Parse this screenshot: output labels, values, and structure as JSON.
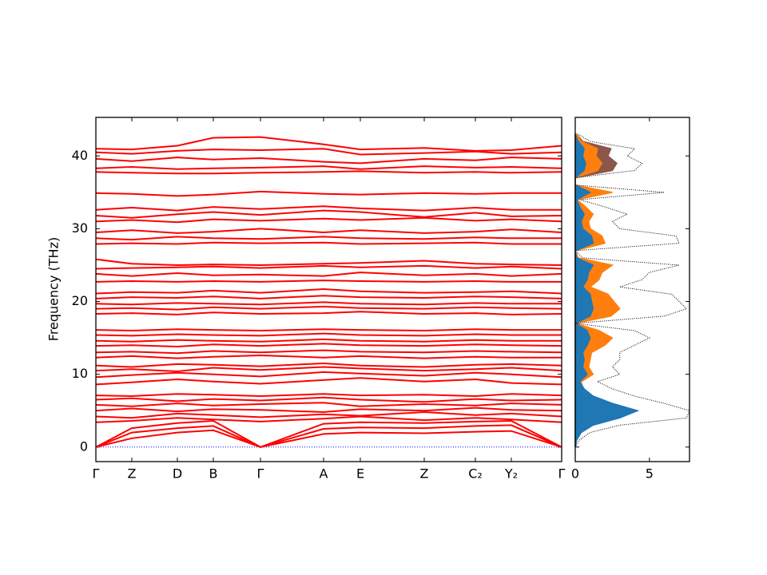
{
  "chart_data": [
    {
      "type": "line",
      "ylabel": "Frequency (THz)",
      "color": "#ff0000",
      "x": [
        0,
        0.45,
        1.02,
        1.47,
        2.06,
        2.85,
        3.31,
        4.11,
        4.75,
        5.2,
        5.83
      ],
      "xlim": [
        0,
        5.83
      ],
      "xticks": [
        {
          "value": 0,
          "label": "Γ"
        },
        {
          "value": 0.45,
          "label": "Z"
        },
        {
          "value": 1.02,
          "label": "D"
        },
        {
          "value": 1.47,
          "label": "B"
        },
        {
          "value": 2.06,
          "label": "Γ"
        },
        {
          "value": 2.85,
          "label": "A"
        },
        {
          "value": 3.31,
          "label": "E"
        },
        {
          "value": 4.11,
          "label": "Z"
        },
        {
          "value": 4.75,
          "label": "C₂"
        },
        {
          "value": 5.2,
          "label": "Y₂"
        },
        {
          "value": 5.83,
          "label": "Γ"
        }
      ],
      "ylim": [
        -2,
        45.3
      ],
      "yticks": [
        0,
        10,
        20,
        30,
        40
      ],
      "hline": {
        "value": 0,
        "color": "#0000ff"
      },
      "series": [
        {
          "values": [
            0,
            1.2,
            2.0,
            2.3,
            0,
            1.8,
            2.0,
            1.9,
            2.1,
            2.2,
            0
          ]
        },
        {
          "values": [
            0,
            2.0,
            2.6,
            2.9,
            0,
            2.5,
            2.7,
            2.6,
            2.9,
            3.0,
            0
          ]
        },
        {
          "values": [
            0,
            2.6,
            3.3,
            3.6,
            0,
            3.2,
            3.4,
            3.3,
            3.5,
            3.6,
            0
          ]
        },
        {
          "values": [
            3.4,
            3.6,
            4.0,
            3.8,
            3.5,
            3.9,
            4.2,
            3.7,
            4.0,
            3.8,
            3.4
          ]
        },
        {
          "values": [
            4.2,
            4.0,
            4.6,
            4.4,
            4.1,
            4.5,
            4.3,
            4.8,
            4.4,
            4.6,
            4.2
          ]
        },
        {
          "values": [
            5.0,
            5.3,
            4.9,
            5.2,
            5.1,
            4.8,
            5.2,
            5.0,
            5.4,
            5.1,
            5.0
          ]
        },
        {
          "values": [
            5.8,
            5.6,
            6.0,
            5.7,
            5.9,
            6.1,
            5.6,
            5.9,
            5.7,
            6.0,
            5.8
          ]
        },
        {
          "values": [
            6.5,
            6.7,
            6.3,
            6.6,
            6.4,
            6.8,
            6.5,
            6.2,
            6.6,
            6.4,
            6.5
          ]
        },
        {
          "values": [
            7.1,
            7.0,
            7.3,
            7.2,
            7.0,
            7.3,
            7.1,
            7.2,
            7.0,
            7.3,
            7.1
          ]
        },
        {
          "values": [
            8.6,
            8.9,
            9.3,
            9.0,
            8.7,
            9.2,
            9.5,
            9.0,
            9.3,
            8.8,
            8.6
          ]
        },
        {
          "values": [
            9.6,
            9.9,
            10.2,
            10.0,
            9.7,
            10.3,
            10.1,
            9.8,
            10.2,
            10.0,
            9.6
          ]
        },
        {
          "values": [
            10.5,
            10.7,
            10.4,
            10.9,
            10.6,
            11.0,
            10.8,
            10.5,
            10.7,
            10.9,
            10.5
          ]
        },
        {
          "values": [
            11.2,
            11.0,
            11.4,
            11.3,
            11.1,
            11.5,
            11.2,
            11.0,
            11.3,
            11.4,
            11.2
          ]
        },
        {
          "values": [
            12.3,
            12.5,
            12.2,
            12.4,
            12.6,
            12.3,
            12.5,
            12.2,
            12.4,
            12.3,
            12.3
          ]
        },
        {
          "values": [
            13.0,
            13.1,
            12.9,
            13.2,
            13.0,
            13.3,
            13.1,
            13.0,
            13.2,
            13.1,
            13.0
          ]
        },
        {
          "values": [
            13.9,
            14.0,
            13.8,
            14.1,
            13.9,
            14.2,
            14.0,
            13.9,
            14.1,
            14.0,
            13.9
          ]
        },
        {
          "values": [
            14.6,
            14.5,
            14.7,
            14.6,
            14.5,
            14.8,
            14.6,
            14.5,
            14.7,
            14.6,
            14.6
          ]
        },
        {
          "values": [
            15.4,
            15.3,
            15.5,
            15.4,
            15.3,
            15.6,
            15.4,
            15.3,
            15.5,
            15.4,
            15.4
          ]
        },
        {
          "values": [
            16.1,
            16.0,
            16.2,
            16.1,
            16.0,
            16.2,
            16.1,
            16.0,
            16.2,
            16.1,
            16.1
          ]
        },
        {
          "values": [
            18.3,
            18.4,
            18.2,
            18.5,
            18.3,
            18.4,
            18.6,
            18.3,
            18.4,
            18.2,
            18.3
          ]
        },
        {
          "values": [
            19.0,
            19.1,
            18.9,
            19.2,
            19.0,
            19.3,
            19.1,
            19.0,
            19.2,
            19.1,
            19.0
          ]
        },
        {
          "values": [
            19.7,
            19.6,
            19.8,
            19.7,
            19.6,
            19.9,
            19.7,
            19.6,
            19.8,
            19.7,
            19.7
          ]
        },
        {
          "values": [
            20.4,
            20.6,
            20.5,
            20.7,
            20.4,
            20.8,
            20.6,
            20.5,
            20.7,
            20.6,
            20.4
          ]
        },
        {
          "values": [
            21.1,
            21.3,
            21.2,
            21.5,
            21.2,
            21.7,
            21.4,
            21.2,
            21.3,
            21.4,
            21.1
          ]
        },
        {
          "values": [
            22.7,
            22.8,
            22.7,
            22.8,
            22.7,
            22.9,
            22.8,
            22.7,
            22.8,
            22.7,
            22.7
          ]
        },
        {
          "values": [
            23.8,
            23.5,
            23.9,
            23.6,
            23.7,
            23.5,
            24.0,
            23.6,
            23.8,
            23.5,
            23.8
          ]
        },
        {
          "values": [
            24.5,
            24.6,
            24.7,
            24.8,
            24.6,
            24.9,
            24.7,
            24.9,
            24.6,
            24.8,
            24.5
          ]
        },
        {
          "values": [
            25.8,
            25.2,
            25.0,
            25.1,
            25.0,
            25.2,
            25.3,
            25.6,
            25.2,
            25.1,
            25.0
          ]
        },
        {
          "values": [
            27.9,
            28.0,
            27.9,
            28.1,
            28.0,
            28.1,
            27.9,
            28.0,
            28.1,
            27.9,
            27.9
          ]
        },
        {
          "values": [
            28.7,
            28.5,
            28.9,
            28.7,
            28.6,
            28.9,
            28.7,
            28.6,
            28.8,
            28.7,
            28.7
          ]
        },
        {
          "values": [
            29.5,
            29.8,
            29.4,
            29.6,
            30.0,
            29.5,
            29.8,
            29.4,
            29.6,
            29.9,
            29.5
          ]
        },
        {
          "values": [
            31.0,
            31.2,
            30.9,
            31.3,
            31.1,
            31.4,
            31.2,
            31.5,
            31.1,
            31.3,
            31.0
          ]
        },
        {
          "values": [
            31.8,
            31.5,
            32.0,
            32.3,
            31.9,
            32.5,
            32.3,
            31.6,
            32.2,
            31.7,
            31.8
          ]
        },
        {
          "values": [
            32.6,
            32.9,
            32.5,
            33.0,
            32.7,
            33.1,
            32.8,
            32.5,
            32.9,
            32.6,
            32.6
          ]
        },
        {
          "values": [
            34.9,
            34.8,
            34.5,
            34.7,
            35.1,
            34.8,
            34.7,
            34.9,
            34.8,
            34.9,
            34.9
          ]
        },
        {
          "values": [
            37.8,
            37.7,
            37.6,
            37.6,
            37.7,
            37.8,
            37.9,
            37.7,
            37.8,
            37.7,
            37.8
          ]
        },
        {
          "values": [
            38.3,
            38.5,
            38.2,
            38.3,
            38.4,
            38.6,
            38.2,
            38.6,
            38.4,
            38.5,
            38.3
          ]
        },
        {
          "values": [
            39.6,
            39.3,
            39.8,
            39.5,
            39.7,
            39.2,
            39.0,
            39.6,
            39.4,
            39.8,
            39.6
          ]
        },
        {
          "values": [
            40.5,
            40.3,
            40.7,
            40.9,
            40.8,
            41.0,
            40.2,
            40.4,
            40.6,
            40.3,
            40.5
          ]
        },
        {
          "values": [
            41.0,
            40.9,
            41.4,
            42.5,
            42.6,
            41.6,
            40.9,
            41.1,
            40.7,
            40.8,
            41.4
          ]
        }
      ]
    },
    {
      "type": "dos",
      "frequencies": [
        0,
        1,
        2,
        3,
        4,
        5,
        6,
        7,
        8,
        9,
        10,
        11,
        12,
        13,
        14,
        15,
        16,
        17,
        18,
        19,
        20,
        21,
        22,
        23,
        24,
        25,
        26,
        27,
        28,
        29,
        30,
        31,
        32,
        33,
        34,
        35,
        36,
        37,
        38,
        39,
        40,
        41,
        42,
        43
      ],
      "xlim": [
        0,
        7.7
      ],
      "xticks": [
        0,
        5
      ],
      "ylim": [
        -2,
        45.3
      ],
      "yticks": [
        0,
        10,
        20,
        30,
        40
      ],
      "total": {
        "color": "#000000",
        "values": [
          0,
          0.3,
          1,
          3,
          7.5,
          7.7,
          6,
          4,
          2.5,
          1.5,
          3,
          2.5,
          3,
          3,
          4,
          5,
          4,
          0,
          6,
          7.5,
          7,
          6.5,
          3,
          4.5,
          5,
          7,
          0.5,
          0,
          7,
          6.8,
          3,
          2.5,
          3.5,
          2,
          0.3,
          6,
          0,
          0,
          4,
          4.5,
          3.5,
          4,
          1,
          0.2
        ]
      },
      "series": [
        {
          "color": "#8c564b",
          "values": [
            0,
            0,
            0,
            0.1,
            0.3,
            0.4,
            0.3,
            0.2,
            0.1,
            0.1,
            0.3,
            0.2,
            0.3,
            0.3,
            0.5,
            0.6,
            0.4,
            0,
            1.0,
            1.4,
            1.3,
            1.2,
            0.5,
            0.9,
            1.0,
            1.5,
            0.1,
            0,
            1.0,
            1.0,
            0.5,
            0.4,
            0.6,
            0.3,
            0.05,
            1.2,
            0,
            0,
            2.5,
            2.8,
            2.2,
            2.4,
            0.5,
            0.1
          ]
        },
        {
          "color": "#ff7f0e",
          "values": [
            0,
            0.05,
            0.2,
            0.6,
            1.5,
            1.2,
            1.0,
            0.8,
            0.5,
            0.4,
            1.2,
            0.9,
            1.0,
            1.1,
            2.0,
            2.5,
            1.6,
            0,
            2.4,
            3.0,
            2.6,
            2.2,
            1.0,
            1.6,
            1.8,
            2.5,
            0.2,
            0,
            2.0,
            1.8,
            1.0,
            0.9,
            1.2,
            0.7,
            0.1,
            2.5,
            0,
            0,
            1.5,
            1.8,
            1.4,
            1.5,
            0.4,
            0.1
          ]
        },
        {
          "color": "#1f77b4",
          "values": [
            0,
            0.1,
            0.4,
            1.2,
            3,
            4.2,
            2.5,
            1.2,
            0.6,
            0.3,
            0.8,
            0.5,
            0.6,
            0.5,
            0.8,
            1.0,
            0.8,
            0,
            1.0,
            1.2,
            1.1,
            1.0,
            0.5,
            0.8,
            0.9,
            1.2,
            0.1,
            0,
            1.2,
            1.1,
            0.5,
            0.4,
            0.6,
            0.3,
            0.1,
            1.0,
            0,
            0,
            0.6,
            0.7,
            0.5,
            0.6,
            0.2,
            0
          ]
        }
      ]
    }
  ]
}
